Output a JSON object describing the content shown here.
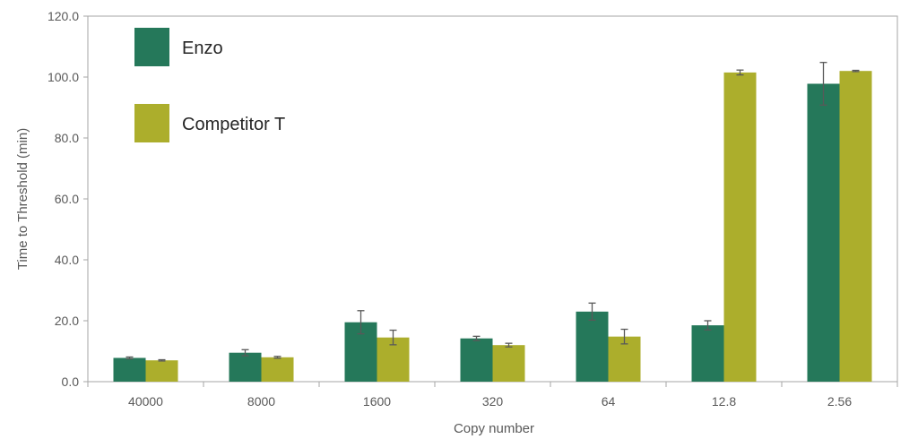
{
  "chart_data": {
    "type": "bar",
    "title": "",
    "xlabel": "Copy number",
    "ylabel": "Time to Threshold (min)",
    "ylim": [
      0,
      120
    ],
    "yticks": [
      "0.0",
      "20.0",
      "40.0",
      "60.0",
      "80.0",
      "100.0",
      "120.0"
    ],
    "categories": [
      "40000",
      "8000",
      "1600",
      "320",
      "64",
      "12.8",
      "2.56"
    ],
    "series": [
      {
        "name": "Enzo",
        "color": "#25785A",
        "values": [
          7.8,
          9.5,
          19.5,
          14.2,
          23.0,
          18.5,
          97.8
        ],
        "errors": [
          0.3,
          1.0,
          3.8,
          0.7,
          2.8,
          1.5,
          7.0
        ]
      },
      {
        "name": "Competitor T",
        "color": "#ACAE2C",
        "values": [
          7.0,
          8.0,
          14.5,
          12.0,
          14.8,
          101.5,
          102.0
        ],
        "errors": [
          0.2,
          0.3,
          2.4,
          0.6,
          2.4,
          0.8,
          0.2
        ]
      }
    ],
    "legend_position": "top-left",
    "grid": false
  }
}
